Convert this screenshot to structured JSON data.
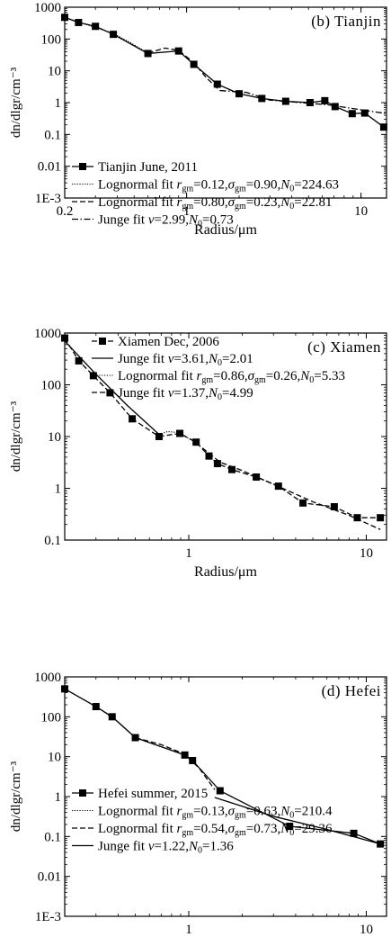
{
  "chart_data": [
    {
      "type": "line",
      "panel_label": "(b) Tianjin",
      "ylabel": "dn/dlgr/cm⁻³",
      "xlabel": "Radius/μm",
      "xscale": "log",
      "yscale": "log",
      "xlim": [
        0.2,
        14
      ],
      "ylim": [
        0.001,
        1000
      ],
      "x_ticks": [
        "0.2",
        "1",
        "10"
      ],
      "y_ticks": [
        "1E-3",
        "0.01",
        "0.1",
        "1",
        "10",
        "100",
        "1000"
      ],
      "legend_position": "bottom-left",
      "series": [
        {
          "name": "Tianjin June, 2011",
          "style": "solid-square",
          "x": [
            0.2,
            0.24,
            0.3,
            0.38,
            0.6,
            0.9,
            1.1,
            1.5,
            2.0,
            2.7,
            3.7,
            5.1,
            6.2,
            7.1,
            8.9,
            10.5,
            13.5
          ],
          "y": [
            480,
            330,
            250,
            140,
            35,
            42,
            16,
            3.8,
            1.9,
            1.35,
            1.1,
            1.0,
            1.15,
            0.75,
            0.45,
            0.47,
            0.17
          ]
        },
        {
          "name": "Lognormal fit r_gm=0.12,σ_gm=0.90,N₀=224.63",
          "style": "dotted",
          "x": [
            0.2,
            0.25,
            0.3,
            0.38,
            0.48,
            0.6
          ],
          "y": [
            480,
            320,
            230,
            150,
            75,
            36
          ]
        },
        {
          "name": "Lognormal fit r_gm=0.80,σ_gm=0.23,N₀=22.81",
          "style": "dash",
          "x": [
            0.6,
            0.75,
            0.9,
            1.1,
            1.3,
            1.55
          ],
          "y": [
            36,
            52,
            44,
            18,
            6,
            2.4
          ]
        },
        {
          "name": "Junge fit ν=2.99,N₀=0.73",
          "style": "dashdot",
          "x": [
            1.55,
            2.2,
            3.0,
            4.5,
            6.5,
            9.0,
            14
          ],
          "y": [
            2.4,
            2.1,
            1.2,
            1.0,
            0.85,
            0.65,
            0.45
          ]
        }
      ]
    },
    {
      "type": "line",
      "panel_label": "(c) Xiamen",
      "ylabel": "dn/dlgr/cm⁻³",
      "xlabel": "Radius/μm",
      "xscale": "log",
      "yscale": "log",
      "xlim": [
        0.2,
        13
      ],
      "ylim": [
        0.1,
        1000
      ],
      "x_ticks": [
        "1",
        "10"
      ],
      "y_ticks": [
        "0.1",
        "1",
        "10",
        "100",
        "1000"
      ],
      "legend_position": "top-left",
      "series": [
        {
          "name": "Xiamen Dec, 2006",
          "style": "dash-square",
          "x": [
            0.2,
            0.24,
            0.29,
            0.36,
            0.48,
            0.68,
            0.89,
            1.1,
            1.3,
            1.45,
            1.75,
            2.4,
            3.2,
            4.4,
            6.6,
            8.9,
            12.0
          ],
          "y": [
            800,
            290,
            150,
            70,
            22,
            10,
            11.5,
            7.8,
            4.2,
            3.0,
            2.3,
            1.65,
            1.1,
            0.52,
            0.44,
            0.27,
            0.27
          ]
        },
        {
          "name": "Junge fit ν=3.61,N₀=2.01",
          "style": "solid",
          "x": [
            0.2,
            0.3,
            0.45,
            0.68
          ],
          "y": [
            700,
            160,
            40,
            11
          ]
        },
        {
          "name": "Lognormal fit r_gm=0.86,σ_gm=0.26,N₀=5.33",
          "style": "dotted",
          "x": [
            0.68,
            0.76,
            0.86,
            0.98,
            1.1
          ],
          "y": [
            11,
            12.5,
            12,
            9.5,
            7.5
          ]
        },
        {
          "name": "Junge fit ν=1.37,N₀=4.99",
          "style": "dash",
          "x": [
            1.1,
            1.5,
            2.0,
            3.0,
            5.0,
            8.0,
            12.0
          ],
          "y": [
            7.5,
            3.2,
            2.2,
            1.2,
            0.55,
            0.3,
            0.16
          ]
        }
      ]
    },
    {
      "type": "line",
      "panel_label": "(d) Hefei",
      "ylabel": "dn/dlgr/cm⁻³",
      "xlabel": "Radius/μm",
      "xscale": "log",
      "yscale": "log",
      "xlim": [
        0.2,
        13
      ],
      "ylim": [
        0.001,
        1000
      ],
      "x_ticks": [
        "1",
        "10"
      ],
      "y_ticks": [
        "1E-3",
        "0.01",
        "0.1",
        "1",
        "10",
        "100",
        "1000"
      ],
      "legend_position": "bottom-left",
      "series": [
        {
          "name": "Hefei summer, 2015",
          "style": "solid-square",
          "x": [
            0.2,
            0.3,
            0.37,
            0.5,
            0.95,
            1.05,
            1.5,
            3.7,
            8.5,
            12.0
          ],
          "y": [
            500,
            180,
            100,
            30,
            11,
            8,
            1.4,
            0.18,
            0.12,
            0.065
          ]
        },
        {
          "name": "Lognormal fit r_gm=0.13,σ_gm=0.63,N₀=210.4",
          "style": "dotted",
          "x": [
            0.2,
            0.26,
            0.32,
            0.4,
            0.5
          ],
          "y": [
            500,
            260,
            150,
            75,
            30
          ]
        },
        {
          "name": "Lognormal fit r_gm=0.54,σ_gm=0.73,N₀=29.36",
          "style": "dash",
          "x": [
            0.5,
            0.7,
            0.95,
            1.15,
            1.4
          ],
          "y": [
            30,
            20,
            11.5,
            5,
            1.5
          ]
        },
        {
          "name": "Junge fit ν=1.22,N₀=1.36",
          "style": "solid",
          "x": [
            1.4,
            3.0,
            6.0,
            12.0
          ],
          "y": [
            0.95,
            0.32,
            0.15,
            0.065
          ]
        }
      ]
    }
  ],
  "legend_text": [
    [
      {
        "label": "Tianjin June, 2011"
      },
      {
        "label": "Lognormal fit ",
        "r": "r",
        "rsub": "gm",
        "eq1": "=0.12,",
        "s": "σ",
        "ssub": "gm",
        "eq2": "=0.90,",
        "n": "N",
        "nsub": "0",
        "eq3": "=224.63"
      },
      {
        "label": "Lognormal fit ",
        "r": "r",
        "rsub": "gm",
        "eq1": "=0.80,",
        "s": "σ",
        "ssub": "gm",
        "eq2": "=0.23,",
        "n": "N",
        "nsub": "0",
        "eq3": "=22.81"
      },
      {
        "label": "Junge fit ",
        "v": "v",
        "eqv": "=2.99,",
        "n": "N",
        "nsub": "0",
        "eq3": "=0.73"
      }
    ],
    [
      {
        "label": "Xiamen Dec, 2006"
      },
      {
        "label": "Junge fit ",
        "v": "v",
        "eqv": "=3.61,",
        "n": "N",
        "nsub": "0",
        "eq3": "=2.01"
      },
      {
        "label": "Lognormal fit ",
        "r": "r",
        "rsub": "gm",
        "eq1": "=0.86,",
        "s": "σ",
        "ssub": "gm",
        "eq2": "=0.26,",
        "n": "N",
        "nsub": "0",
        "eq3": "=5.33"
      },
      {
        "label": "Junge fit ",
        "v": "v",
        "eqv": "=1.37,",
        "n": "N",
        "nsub": "0",
        "eq3": "=4.99"
      }
    ],
    [
      {
        "label": "Hefei summer, 2015"
      },
      {
        "label": "Lognormal fit ",
        "r": "r",
        "rsub": "gm",
        "eq1": "=0.13,",
        "s": "σ",
        "ssub": "gm",
        "eq2": "=0.63,",
        "n": "N",
        "nsub": "0",
        "eq3": "=210.4"
      },
      {
        "label": "Lognormal fit ",
        "r": "r",
        "rsub": "gm",
        "eq1": "=0.54,",
        "s": "σ",
        "ssub": "gm",
        "eq2": "=0.73,",
        "n": "N",
        "nsub": "0",
        "eq3": "=29.36"
      },
      {
        "label": "Junge fit ",
        "v": "v",
        "eqv": "=1.22,",
        "n": "N",
        "nsub": "0",
        "eq3": "=1.36"
      }
    ]
  ]
}
